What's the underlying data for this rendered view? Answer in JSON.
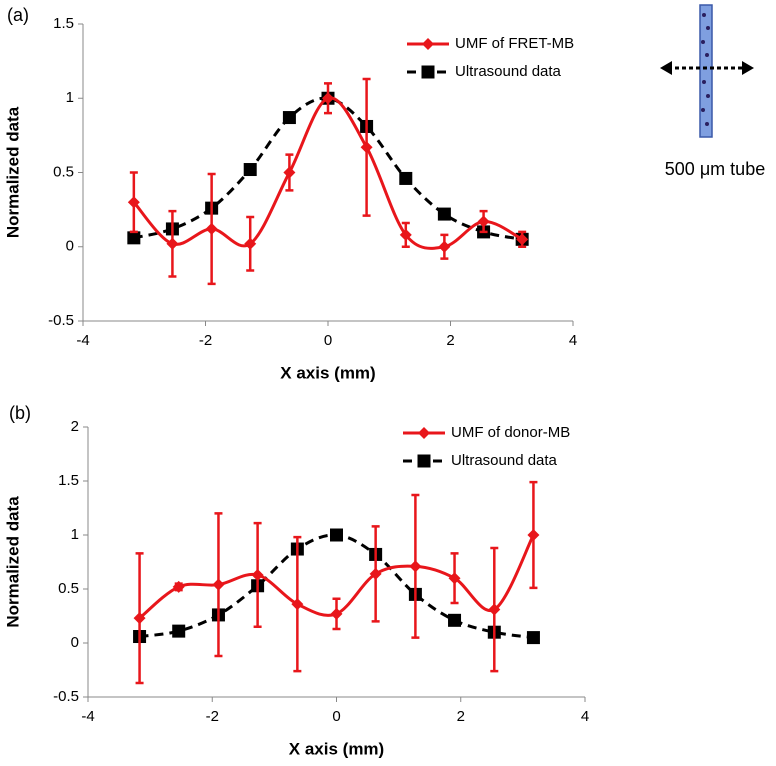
{
  "chart_data": [
    {
      "type": "line",
      "panel_label": "(a)",
      "xlabel": "X axis (mm)",
      "ylabel": "Normalized data",
      "x": [
        -3.17,
        -2.54,
        -1.9,
        -1.27,
        -0.63,
        0,
        0.63,
        1.27,
        1.9,
        2.54,
        3.17
      ],
      "xlim": [
        -4,
        4
      ],
      "xticks": [
        -4,
        -2,
        0,
        2,
        4
      ],
      "ylim": [
        -0.5,
        1.5
      ],
      "yticks": [
        -0.5,
        0,
        0.5,
        1,
        1.5
      ],
      "legend": "top-right",
      "annotation": "500 μm tube",
      "series": [
        {
          "name": "UMF of FRET-MB",
          "color": "#e8161b",
          "marker": "diamond",
          "dash": false,
          "values": [
            0.3,
            0.02,
            0.12,
            0.02,
            0.5,
            1.0,
            0.67,
            0.08,
            0.0,
            0.17,
            0.05
          ],
          "errors": [
            0.2,
            0.22,
            0.37,
            0.18,
            0.12,
            0.1,
            0.46,
            0.08,
            0.08,
            0.07,
            0.05
          ]
        },
        {
          "name": "Ultrasound data",
          "color": "#000000",
          "marker": "square",
          "dash": true,
          "values": [
            0.06,
            0.12,
            0.26,
            0.52,
            0.87,
            1.0,
            0.81,
            0.46,
            0.22,
            0.1,
            0.05
          ]
        }
      ]
    },
    {
      "type": "line",
      "panel_label": "(b)",
      "xlabel": "X axis (mm)",
      "ylabel": "Normalized data",
      "x": [
        -3.17,
        -2.54,
        -1.9,
        -1.27,
        -0.63,
        0,
        0.63,
        1.27,
        1.9,
        2.54,
        3.17
      ],
      "xlim": [
        -4,
        4
      ],
      "xticks": [
        -4,
        -2,
        0,
        2,
        4
      ],
      "ylim": [
        -0.5,
        2
      ],
      "yticks": [
        -0.5,
        0,
        0.5,
        1,
        1.5,
        2
      ],
      "legend": "top-right",
      "series": [
        {
          "name": "UMF of donor-MB",
          "color": "#e8161b",
          "marker": "diamond",
          "dash": false,
          "values": [
            0.23,
            0.52,
            0.54,
            0.63,
            0.36,
            0.27,
            0.64,
            0.71,
            0.6,
            0.31,
            1.0
          ],
          "errors": [
            0.6,
            0.03,
            0.66,
            0.48,
            0.62,
            0.14,
            0.44,
            0.66,
            0.23,
            0.57,
            0.49
          ]
        },
        {
          "name": "Ultrasound data",
          "color": "#000000",
          "marker": "square",
          "dash": true,
          "values": [
            0.06,
            0.11,
            0.26,
            0.53,
            0.87,
            1.0,
            0.82,
            0.45,
            0.21,
            0.1,
            0.05
          ]
        }
      ]
    }
  ]
}
